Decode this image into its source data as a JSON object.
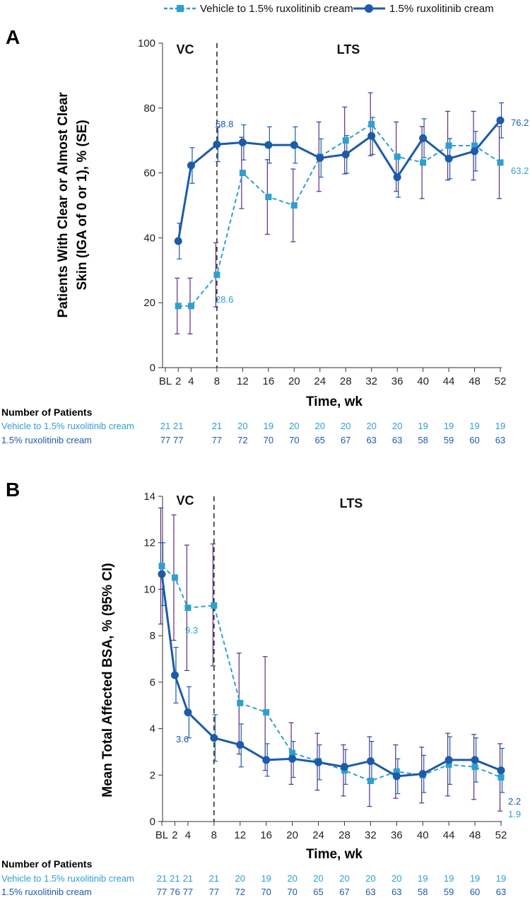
{
  "colors": {
    "vehicle": "#2e9fd0",
    "ruxolitinib": "#1c5ba8",
    "errorbar": "#5a2d82",
    "axis": "#333333"
  },
  "legend": {
    "vehicle_label": "Vehicle to 1.5% ruxolitinib cream",
    "ruxolitinib_label": "1.5% ruxolitinib cream"
  },
  "chart_data": [
    {
      "panel": "A",
      "type": "line",
      "phase_labels": {
        "vc": "VC",
        "lts": "LTS"
      },
      "xlabel": "Time, wk",
      "ylabel": "Patients With Clear or Almost Clear Skin (IGA of 0 or 1), % (SE)",
      "ylim": [
        0,
        100
      ],
      "yticks": [
        0,
        20,
        40,
        60,
        80,
        100
      ],
      "x_tick_labels": [
        "BL",
        "2",
        "4",
        "8",
        "12",
        "16",
        "20",
        "24",
        "28",
        "32",
        "36",
        "40",
        "44",
        "48",
        "52"
      ],
      "x_tick_values": [
        0,
        2,
        4,
        8,
        12,
        16,
        20,
        24,
        28,
        32,
        36,
        40,
        44,
        48,
        52
      ],
      "divider_week": 8,
      "series": [
        {
          "name": "Vehicle to 1.5% ruxolitinib cream",
          "x": [
            2,
            4,
            8,
            12,
            16,
            20,
            24,
            28,
            32,
            36,
            40,
            44,
            48,
            52
          ],
          "values": [
            19.0,
            19.0,
            28.6,
            60.0,
            52.6,
            50.0,
            65.0,
            70.0,
            75.0,
            65.0,
            63.2,
            68.4,
            68.4,
            63.2
          ],
          "err_low": [
            10.4,
            10.4,
            18.7,
            49.0,
            41.1,
            38.8,
            54.3,
            59.7,
            65.3,
            54.3,
            52.1,
            57.8,
            57.8,
            52.1
          ],
          "err_high": [
            27.6,
            27.6,
            38.5,
            71.0,
            64.1,
            61.2,
            75.7,
            80.3,
            84.7,
            75.7,
            74.3,
            79.0,
            79.0,
            74.3
          ]
        },
        {
          "name": "1.5% ruxolitinib cream",
          "x": [
            2,
            4,
            8,
            12,
            16,
            20,
            24,
            28,
            32,
            36,
            40,
            44,
            48,
            52
          ],
          "values": [
            39.0,
            62.3,
            68.8,
            69.4,
            68.6,
            68.6,
            64.6,
            65.7,
            71.4,
            58.7,
            70.7,
            64.4,
            66.7,
            76.2
          ],
          "err_low": [
            33.5,
            56.8,
            63.5,
            64.0,
            63.0,
            63.0,
            58.7,
            59.9,
            65.7,
            52.5,
            64.7,
            58.2,
            60.6,
            70.8
          ],
          "err_high": [
            44.5,
            67.8,
            74.1,
            74.8,
            74.2,
            74.2,
            70.5,
            71.5,
            77.1,
            64.9,
            76.7,
            70.6,
            72.8,
            81.6
          ]
        }
      ],
      "annotations": [
        {
          "series": 1,
          "week": 8,
          "text": "68.8"
        },
        {
          "series": 0,
          "week": 8,
          "text": "28.6"
        },
        {
          "series": 1,
          "week": 52,
          "text": "76.2"
        },
        {
          "series": 0,
          "week": 52,
          "text": "63.2"
        }
      ],
      "patients": {
        "header": "Number of Patients",
        "vehicle": {
          "label": "Vehicle to 1.5% ruxolitinib cream",
          "x": [
            0,
            2,
            8,
            12,
            16,
            20,
            24,
            28,
            32,
            36,
            40,
            44,
            48,
            52
          ],
          "counts": [
            "21",
            "21",
            "21",
            "20",
            "19",
            "20",
            "20",
            "20",
            "20",
            "20",
            "19",
            "19",
            "19",
            "19"
          ]
        },
        "ruxolitinib": {
          "label": "1.5% ruxolitinib cream",
          "x": [
            0,
            2,
            8,
            12,
            16,
            20,
            24,
            28,
            32,
            36,
            40,
            44,
            48,
            52
          ],
          "counts": [
            "77",
            "77",
            "77",
            "72",
            "70",
            "70",
            "65",
            "67",
            "63",
            "63",
            "58",
            "59",
            "60",
            "63"
          ]
        }
      }
    },
    {
      "panel": "B",
      "type": "line",
      "phase_labels": {
        "vc": "VC",
        "lts": "LTS"
      },
      "xlabel": "Time, wk",
      "ylabel": "Mean Total Affected BSA, % (95% CI)",
      "ylim": [
        0,
        14
      ],
      "yticks": [
        0,
        2,
        4,
        6,
        8,
        10,
        12,
        14
      ],
      "x_tick_labels": [
        "BL",
        "2",
        "4",
        "8",
        "12",
        "16",
        "20",
        "24",
        "28",
        "32",
        "36",
        "40",
        "44",
        "48",
        "52"
      ],
      "x_tick_values": [
        0,
        2,
        4,
        8,
        12,
        16,
        20,
        24,
        28,
        32,
        36,
        40,
        44,
        48,
        52
      ],
      "divider_week": 8,
      "series": [
        {
          "name": "Vehicle to 1.5% ruxolitinib cream",
          "x": [
            0,
            2,
            4,
            8,
            12,
            16,
            20,
            24,
            28,
            32,
            36,
            40,
            44,
            48,
            52
          ],
          "values": [
            11.0,
            10.5,
            9.2,
            9.3,
            5.1,
            4.7,
            2.95,
            2.6,
            2.2,
            1.75,
            2.15,
            2.0,
            2.45,
            2.35,
            1.9
          ],
          "err_low": [
            8.5,
            7.8,
            6.5,
            6.7,
            2.9,
            2.2,
            1.6,
            1.35,
            1.1,
            0.65,
            1.0,
            0.8,
            1.1,
            0.95,
            0.45
          ],
          "err_high": [
            13.5,
            13.2,
            11.9,
            11.95,
            7.25,
            7.1,
            4.25,
            3.8,
            3.3,
            3.65,
            3.3,
            3.2,
            3.8,
            3.75,
            3.35
          ]
        },
        {
          "name": "1.5% ruxolitinib cream",
          "x": [
            0,
            2,
            4,
            8,
            12,
            16,
            20,
            24,
            28,
            32,
            36,
            40,
            44,
            48,
            52
          ],
          "values": [
            10.65,
            6.3,
            4.7,
            3.6,
            3.3,
            2.65,
            2.7,
            2.55,
            2.35,
            2.6,
            1.95,
            2.05,
            2.65,
            2.65,
            2.2
          ],
          "err_low": [
            9.3,
            5.1,
            3.6,
            2.6,
            2.35,
            1.95,
            1.9,
            1.8,
            1.6,
            1.75,
            1.2,
            1.25,
            1.6,
            1.7,
            1.25
          ],
          "err_high": [
            12.0,
            7.5,
            5.8,
            4.6,
            4.2,
            3.35,
            3.45,
            3.3,
            3.1,
            3.45,
            2.7,
            2.85,
            3.65,
            3.6,
            3.15
          ]
        }
      ],
      "annotations": [
        {
          "series": 0,
          "week": 8,
          "text": "9.3"
        },
        {
          "series": 1,
          "week": 8,
          "text": "3.6"
        },
        {
          "series": 1,
          "week": 52,
          "text": "2.2"
        },
        {
          "series": 0,
          "week": 52,
          "text": "1.9"
        }
      ],
      "patients": {
        "header": "Number of Patients",
        "vehicle": {
          "label": "Vehicle to 1.5% ruxolitinib cream",
          "x": [
            0,
            2,
            4,
            8,
            12,
            16,
            20,
            24,
            28,
            32,
            36,
            40,
            44,
            48,
            52
          ],
          "counts": [
            "21",
            "21",
            "21",
            "21",
            "20",
            "19",
            "20",
            "20",
            "20",
            "20",
            "20",
            "19",
            "19",
            "19",
            "19"
          ]
        },
        "ruxolitinib": {
          "label": "1.5% ruxolitinib cream",
          "x": [
            0,
            2,
            4,
            8,
            12,
            16,
            20,
            24,
            28,
            32,
            36,
            40,
            44,
            48,
            52
          ],
          "counts": [
            "77",
            "76",
            "77",
            "77",
            "72",
            "70",
            "70",
            "65",
            "67",
            "63",
            "63",
            "58",
            "59",
            "60",
            "63"
          ]
        }
      }
    }
  ]
}
